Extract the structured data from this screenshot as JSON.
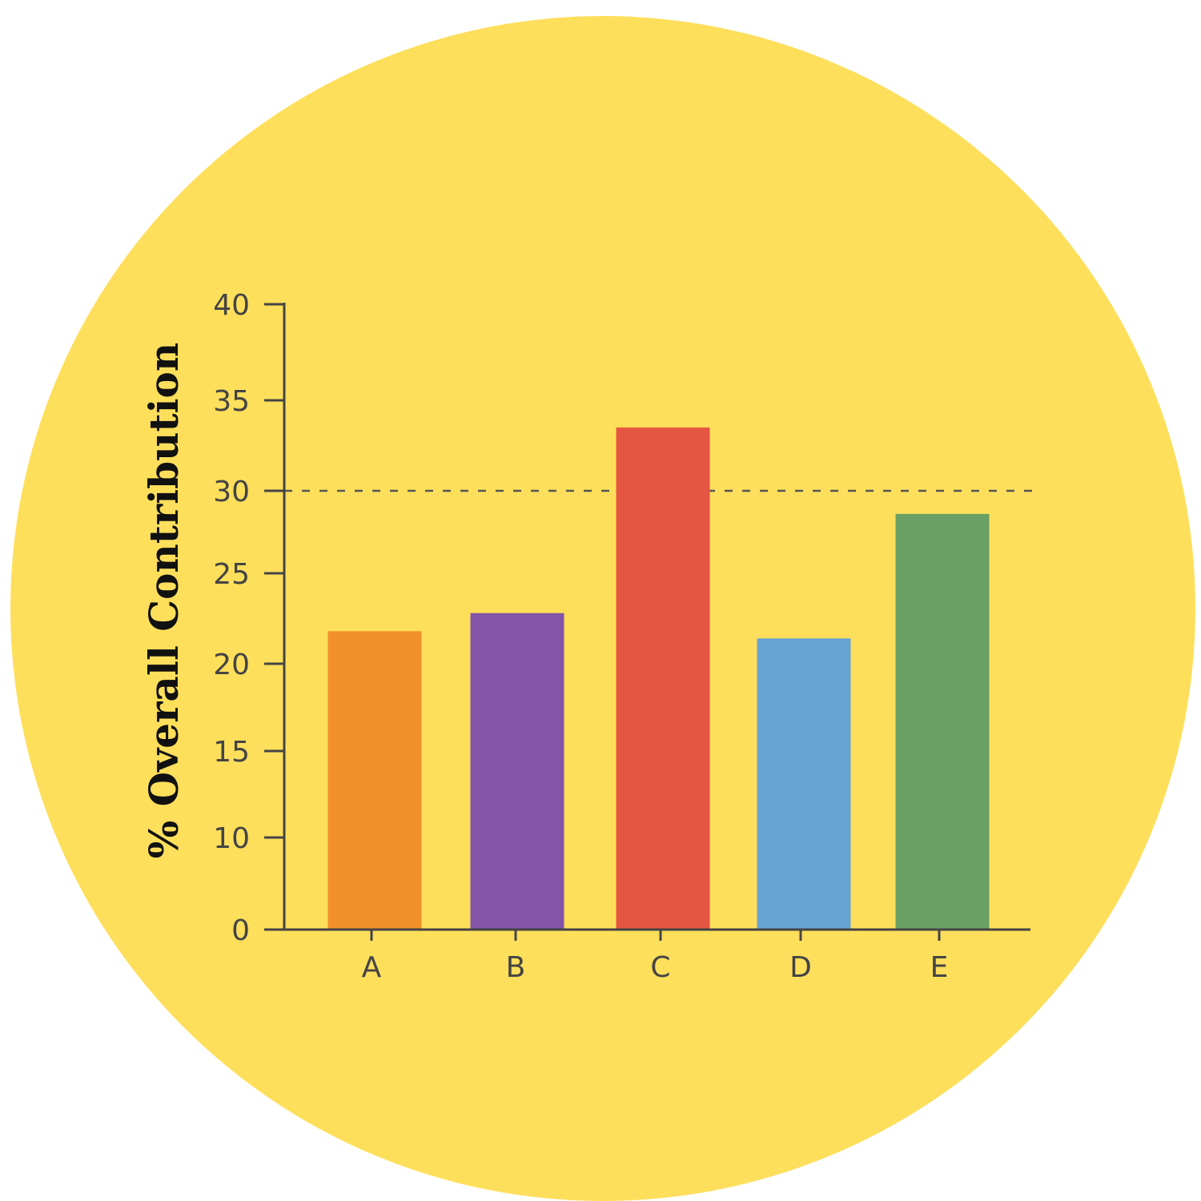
{
  "chart_data": {
    "type": "bar",
    "title": "",
    "xlabel": "",
    "ylabel": "% Overall Contribution",
    "categories": [
      "A",
      "B",
      "C",
      "D",
      "E"
    ],
    "values": [
      21.8,
      22.8,
      33.5,
      21.4,
      28.6
    ],
    "colors": [
      "#F29129",
      "#8455A8",
      "#E55642",
      "#68A4D3",
      "#69A065"
    ],
    "yticks": [
      0,
      10,
      15,
      20,
      25,
      30,
      35,
      40
    ],
    "ylim": [
      0,
      40
    ],
    "reference_line": {
      "value": 30,
      "style": "dashed"
    },
    "grid": false,
    "background_color": "#FEDF5C"
  }
}
